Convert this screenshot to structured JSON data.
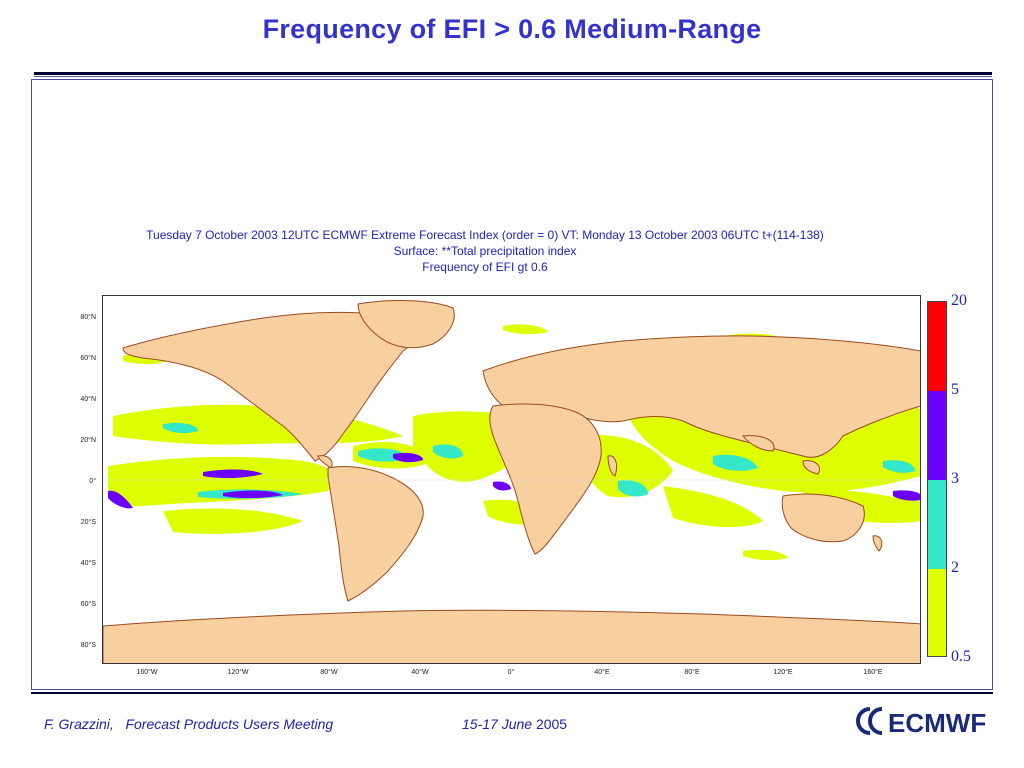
{
  "slide": {
    "title": "Frequency of  EFI > 0.6   Medium-Range"
  },
  "plot": {
    "header_line1": "Tuesday 7 October 2003 12UTC ECMWF  Extreme Forecast Index (order =  0)  VT: Monday 13 October 2003 06UTC t+(114-138)",
    "header_line2": "Surface: **Total precipitation index",
    "header_line3": "Frequency of EFI gt 0.6"
  },
  "map": {
    "lat_labels": [
      "80°N",
      "60°N",
      "40°N",
      "20°N",
      "0°",
      "20°S",
      "40°S",
      "60°S",
      "80°S"
    ],
    "lon_labels": [
      "160°W",
      "120°W",
      "80°W",
      "40°W",
      "0°",
      "40°E",
      "80°E",
      "120°E",
      "160°E"
    ],
    "colors": {
      "ocean": "#ffffff",
      "land": "#f8cf9f",
      "coast": "#9a4a20"
    }
  },
  "legend": {
    "levels": [
      "20",
      "5",
      "3",
      "2",
      "0.5"
    ],
    "bands": [
      {
        "from": "5",
        "to": "20",
        "color": "#ff0000"
      },
      {
        "from": "3",
        "to": "5",
        "color": "#6b00ff"
      },
      {
        "from": "2",
        "to": "3",
        "color": "#33e8c8"
      },
      {
        "from": "0.5",
        "to": "2",
        "color": "#ddff00"
      }
    ]
  },
  "footer": {
    "author": "F. Grazzini,",
    "event": "Forecast Products Users Meeting",
    "dates": "15-17 June",
    "year": "2005",
    "logo_text": "ECMWF"
  }
}
